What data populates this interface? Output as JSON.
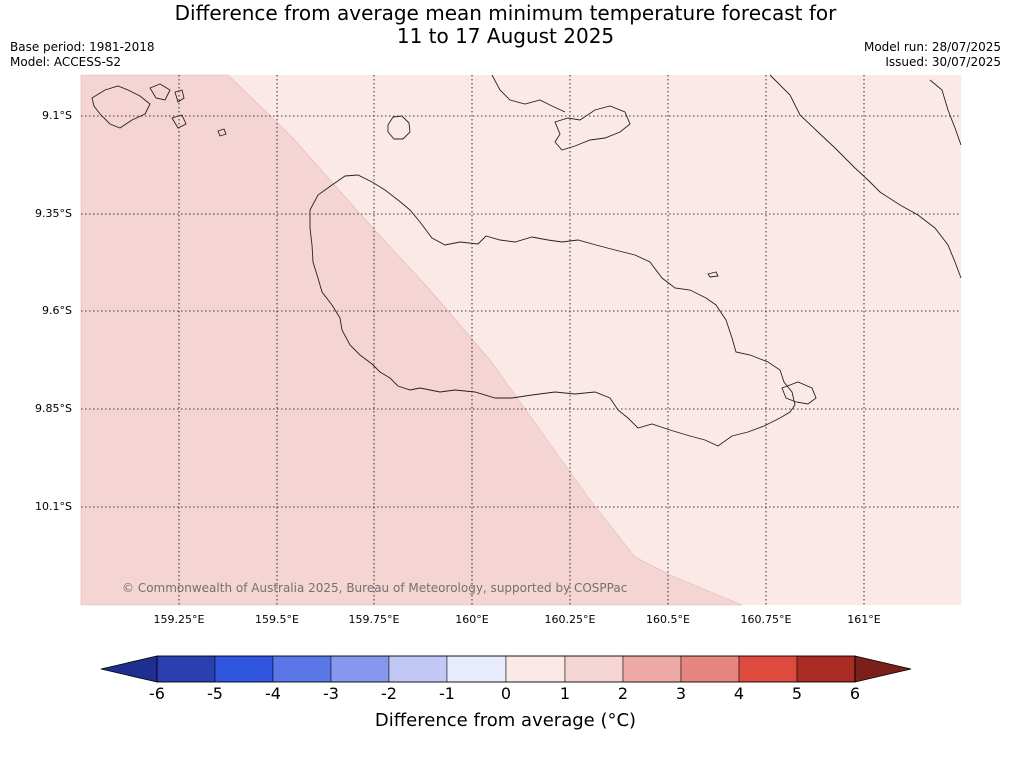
{
  "title": {
    "line1": "Difference from average mean minimum temperature forecast for",
    "line2": "11 to 17 August 2025"
  },
  "meta": {
    "base_period": "Base period: 1981-2018",
    "model": "Model: ACCESS-S2",
    "model_run": "Model run: 28/07/2025",
    "issued": "Issued: 30/07/2025"
  },
  "map": {
    "lat_labels": [
      "9.1°S",
      "9.35°S",
      "9.6°S",
      "9.85°S",
      "10.1°S"
    ],
    "lon_labels": [
      "159.25°E",
      "159.5°E",
      "159.75°E",
      "160°E",
      "160.25°E",
      "160.5°E",
      "160.75°E",
      "161°E"
    ],
    "copyright": "© Commonwealth of Australia 2025, Bureau of Meteorology, supported by COSPPac",
    "fill_colors": {
      "band_0_1": "#fbe9e8",
      "band_1_2": "#f4d5d3"
    }
  },
  "colorbar": {
    "label": "Difference from average (°C)",
    "ticks": [
      "-6",
      "-5",
      "-4",
      "-3",
      "-2",
      "-1",
      "0",
      "1",
      "2",
      "3",
      "4",
      "5",
      "6"
    ],
    "colors": [
      "#1f2f8f",
      "#2a3fb0",
      "#2f54e0",
      "#5a77e8",
      "#8597ee",
      "#c1c8f5",
      "#e8ebfb",
      "#fbe9e8",
      "#f4d5d3",
      "#eeaaa6",
      "#e78680",
      "#de4a3e",
      "#aa2a24",
      "#7a1f1a"
    ]
  }
}
